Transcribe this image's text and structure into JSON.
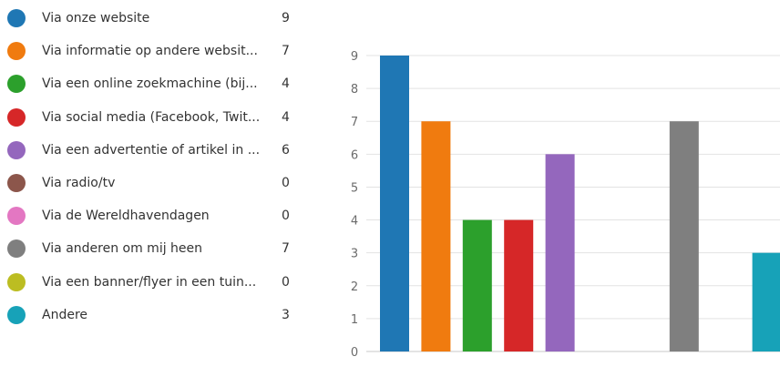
{
  "legend": [
    {
      "label": "Via onze website",
      "count": "9",
      "color": "#1f77b4"
    },
    {
      "label": "Via informatie op andere websit...",
      "count": "7",
      "color": "#f07b0f"
    },
    {
      "label": "Via een online zoekmachine (bij...",
      "count": "4",
      "color": "#2ca02c"
    },
    {
      "label": "Via social media (Facebook, Twit...",
      "count": "4",
      "color": "#d62728"
    },
    {
      "label": "Via een advertentie of artikel in ...",
      "count": "6",
      "color": "#9467bd"
    },
    {
      "label": "Via radio/tv",
      "count": "0",
      "color": "#8c564b"
    },
    {
      "label": "Via de Wereldhavendagen",
      "count": "0",
      "color": "#e377c2"
    },
    {
      "label": "Via anderen om mij heen",
      "count": "7",
      "color": "#7f7f7f"
    },
    {
      "label": "Via een banner/flyer in een tuin...",
      "count": "0",
      "color": "#bcbd22"
    },
    {
      "label": "Andere",
      "count": "3",
      "color": "#17a2b8"
    }
  ],
  "chart_data": {
    "type": "bar",
    "categories": [
      "Via onze website",
      "Via informatie op andere websit...",
      "Via een online zoekmachine (bij...",
      "Via social media (Facebook, Twit...",
      "Via een advertentie of artikel in ...",
      "Via radio/tv",
      "Via de Wereldhavendagen",
      "Via anderen om mij heen",
      "Via een banner/flyer in een tuin...",
      "Andere"
    ],
    "values": [
      9,
      7,
      4,
      4,
      6,
      0,
      0,
      7,
      0,
      3
    ],
    "colors": [
      "#1f77b4",
      "#f07b0f",
      "#2ca02c",
      "#d62728",
      "#9467bd",
      "#8c564b",
      "#e377c2",
      "#7f7f7f",
      "#bcbd22",
      "#17a2b8"
    ],
    "yticks": [
      "0",
      "1",
      "2",
      "3",
      "4",
      "5",
      "6",
      "7",
      "8",
      "9"
    ],
    "ylim": [
      0,
      9
    ],
    "grid": true,
    "legend_position": "left",
    "title": "",
    "xlabel": "",
    "ylabel": ""
  }
}
